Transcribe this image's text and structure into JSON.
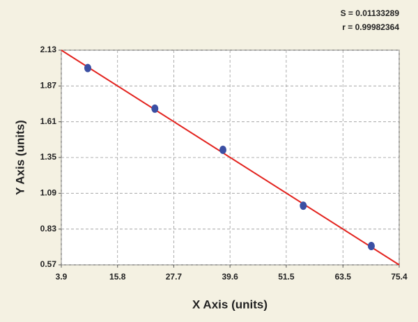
{
  "chart_data": {
    "type": "scatter",
    "annotations": [
      "S = 0.01133289",
      "r = 0.99982364"
    ],
    "x_label": "X Axis (units)",
    "y_label": "Y Axis (units)",
    "xlim": [
      3.9,
      75.4
    ],
    "xticks": [
      3.9,
      15.8,
      27.7,
      39.6,
      51.5,
      63.5,
      75.4
    ],
    "ylim": [
      0.57,
      2.13
    ],
    "yticks": [
      0.57,
      0.83,
      1.09,
      1.35,
      1.61,
      1.87,
      2.13
    ],
    "grid": true,
    "series": [
      {
        "kind": "points",
        "color": "#3b4fa3",
        "x": [
          9.5,
          23.7,
          38.1,
          55.1,
          69.5
        ],
        "values": [
          2.0,
          1.705,
          1.406,
          1.0,
          0.707
        ]
      },
      {
        "kind": "line",
        "color": "#e3231e",
        "x": [
          3.9,
          75.4
        ],
        "values": [
          2.13,
          0.57
        ]
      }
    ]
  }
}
